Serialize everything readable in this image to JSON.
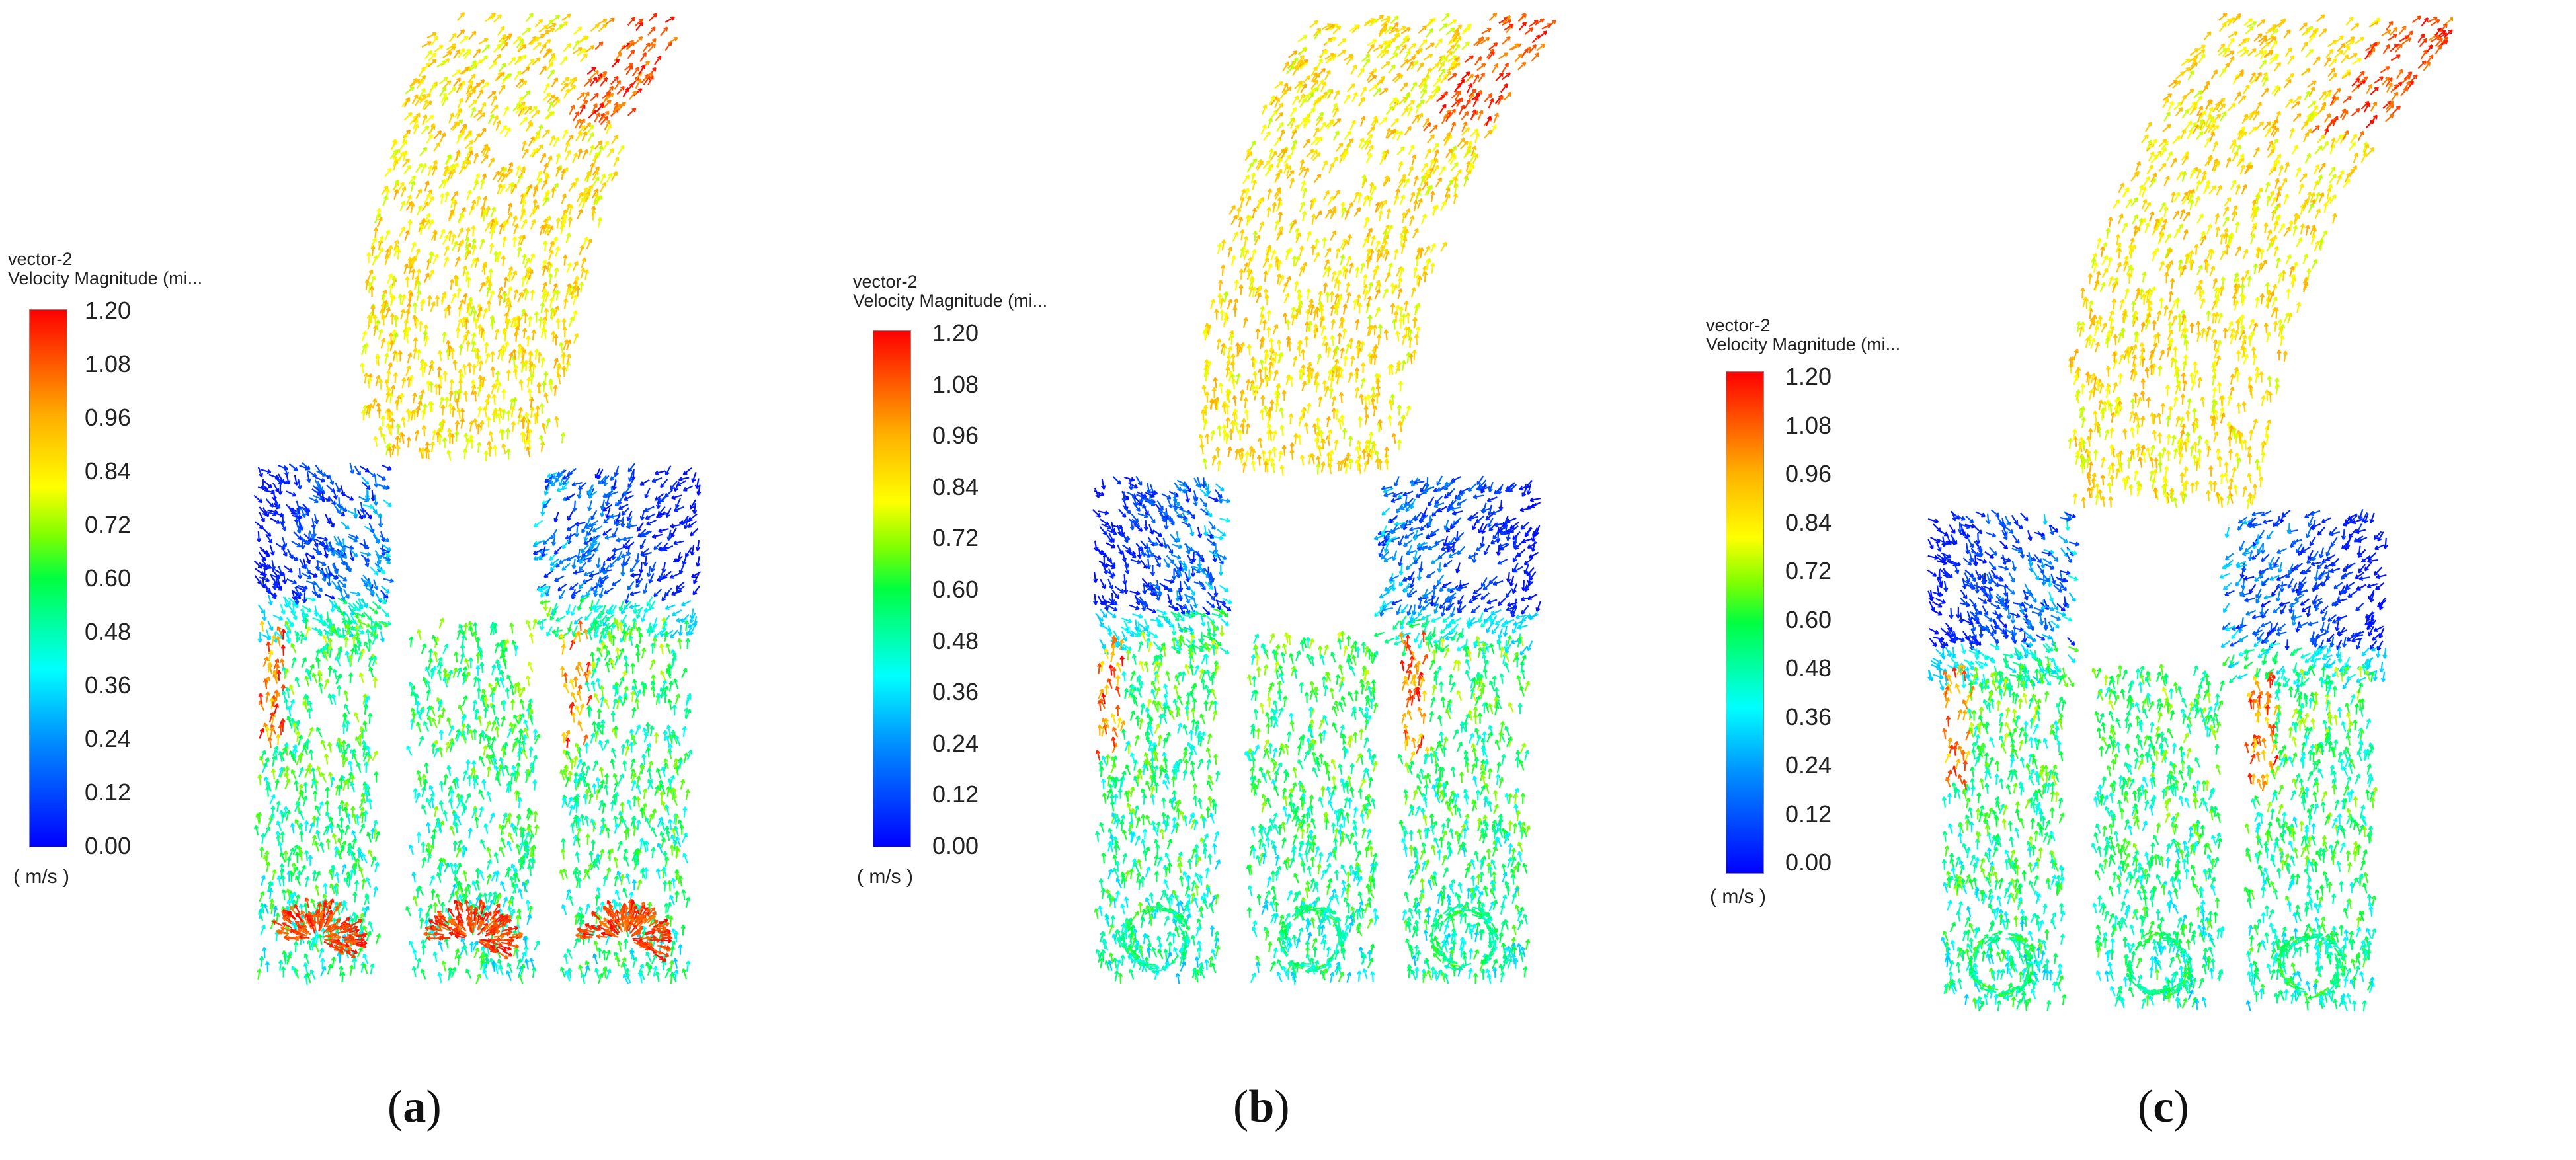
{
  "colorbar": {
    "title": "vector-2",
    "subtitle": "Velocity Magnitude (mi...",
    "ticks": [
      "1.20",
      "1.08",
      "0.96",
      "0.84",
      "0.72",
      "0.60",
      "0.48",
      "0.36",
      "0.24",
      "0.12",
      "0.00"
    ],
    "unit": "( m/s )",
    "colors": [
      "#0000ff",
      "#0090ff",
      "#00ffff",
      "#00ff40",
      "#7fff00",
      "#ffff00",
      "#ffb000",
      "#ff0000"
    ]
  },
  "panels": [
    {
      "letter": "a",
      "open": "(",
      "close": ")",
      "outlet_bubbles": false,
      "inlet_spray": true
    },
    {
      "letter": "b",
      "open": "(",
      "close": ")",
      "outlet_bubbles": true,
      "inlet_spray": false
    },
    {
      "letter": "c",
      "open": "(",
      "close": ")",
      "outlet_bubbles": true,
      "inlet_spray": false
    }
  ]
}
